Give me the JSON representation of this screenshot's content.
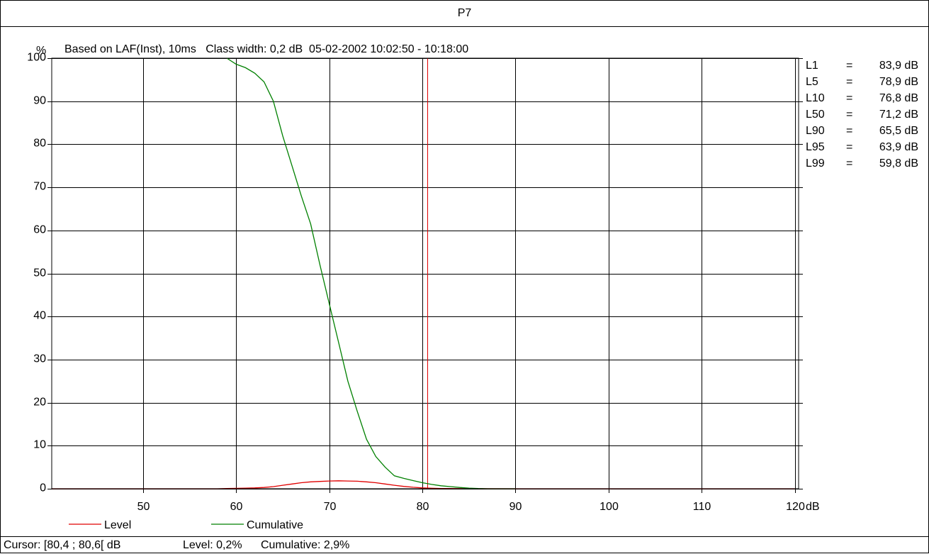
{
  "title": "P7",
  "status": {
    "cursor": "Cursor: [80,4 ; 80,6[ dB",
    "level": "Level: 0,2%",
    "cumulative": "Cumulative: 2,9%"
  },
  "chart_data": {
    "type": "line",
    "subtitle": "Based on LAF(Inst), 10ms   Class width: 0,2 dB  05-02-2002 10:02:50 - 10:18:00",
    "xlabel": "dB",
    "ylabel": "%",
    "xlim": [
      40.2,
      120.4
    ],
    "ylim": [
      0,
      100
    ],
    "xticks": [
      50,
      60,
      70,
      80,
      90,
      100,
      110,
      120
    ],
    "yticks": [
      0,
      10,
      20,
      30,
      40,
      50,
      60,
      70,
      80,
      90,
      100
    ],
    "grid": true,
    "legend_position": "bottom-left",
    "cursor_x": 80.5,
    "series": [
      {
        "name": "Level",
        "color": "#e00000",
        "x": [
          40.2,
          50,
          58,
          59,
          60,
          61,
          62,
          63,
          64,
          65,
          66,
          67,
          68,
          69,
          70,
          71,
          72,
          73,
          74,
          75,
          76,
          77,
          78,
          79,
          80,
          81,
          82,
          85,
          90,
          120
        ],
        "y": [
          0,
          0,
          0,
          0.05,
          0.1,
          0.15,
          0.2,
          0.3,
          0.5,
          0.8,
          1.1,
          1.4,
          1.6,
          1.7,
          1.8,
          1.85,
          1.8,
          1.75,
          1.6,
          1.4,
          1.1,
          0.8,
          0.55,
          0.35,
          0.2,
          0.12,
          0.06,
          0.02,
          0,
          0
        ]
      },
      {
        "name": "Cumulative",
        "color": "#008000",
        "x": [
          59.0,
          60.0,
          61.0,
          62.0,
          63.0,
          64.0,
          65.0,
          66.0,
          67.0,
          68.0,
          69.0,
          70.0,
          71.0,
          72.0,
          73.0,
          74.0,
          75.0,
          76.0,
          77.0,
          78.0,
          79.0,
          80.0,
          81.0,
          82.0,
          83.0,
          84.0,
          85.0,
          86.0,
          87.0,
          88.0,
          89.0,
          90.0
        ],
        "y": [
          100,
          98.6,
          97.8,
          96.5,
          94.5,
          90.0,
          82.0,
          75.0,
          68.0,
          61.5,
          52.0,
          43.0,
          34.0,
          25.0,
          18.0,
          11.5,
          7.5,
          5.0,
          3.0,
          2.4,
          1.9,
          1.4,
          1.0,
          0.7,
          0.5,
          0.3,
          0.15,
          0.05,
          0,
          0,
          0,
          0
        ]
      }
    ],
    "percentiles": [
      {
        "label": "L1",
        "eq": "=",
        "value": "83,9 dB"
      },
      {
        "label": "L5",
        "eq": "=",
        "value": "78,9 dB"
      },
      {
        "label": "L10",
        "eq": "=",
        "value": "76,8 dB"
      },
      {
        "label": "L50",
        "eq": "=",
        "value": "71,2 dB"
      },
      {
        "label": "L90",
        "eq": "=",
        "value": "65,5 dB"
      },
      {
        "label": "L95",
        "eq": "=",
        "value": "63,9 dB"
      },
      {
        "label": "L99",
        "eq": "=",
        "value": "59,8 dB"
      }
    ]
  }
}
